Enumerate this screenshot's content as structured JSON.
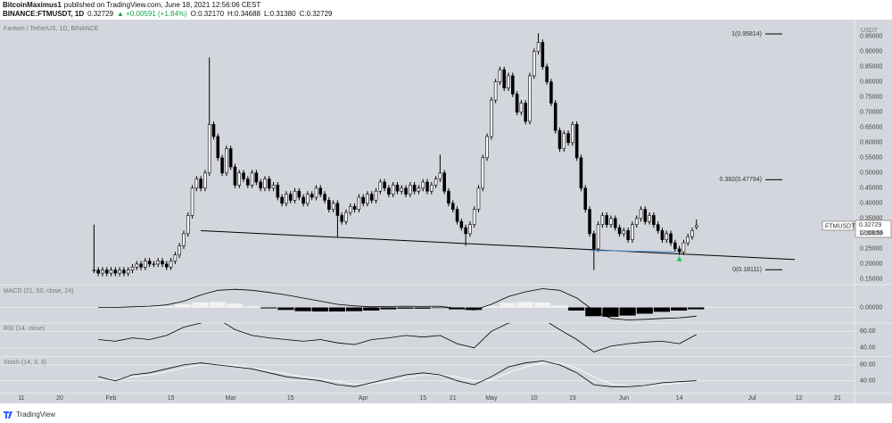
{
  "header": {
    "byline_user": "BitcoinMaximus1",
    "byline": "published on TradingView.com, June 18, 2021 12:56:06 CEST",
    "symbol": "BINANCE:FTMUSDT, 1D",
    "last": "0.32729",
    "change": "▲ +0.00591 (+1.84%)",
    "ohlc": [
      "O:0.32170",
      "H:0.34688",
      "L:0.31380",
      "C:0.32729"
    ]
  },
  "price_tag": {
    "symbol": "FTMUSDT",
    "price": "0.32729",
    "countdown": "13:03:56"
  },
  "footer": {
    "brand": "TradingView"
  },
  "chart_data": [
    {
      "type": "candlestick",
      "title": "Fantom / TetherUS, 1D, BINANCE",
      "y_unit": "USDT",
      "up_color": "#ffffff",
      "down_color": "#000000",
      "x": [
        27,
        28,
        29,
        30,
        31,
        32,
        33,
        34,
        35,
        36,
        37,
        38,
        39,
        40,
        41,
        42,
        43,
        44,
        45,
        46,
        47,
        48,
        49,
        50,
        51,
        52,
        53,
        54,
        55,
        56,
        57,
        58,
        59,
        60,
        61,
        62,
        63,
        64,
        65,
        66,
        67,
        68,
        69,
        70,
        71,
        72,
        73,
        74,
        75,
        76,
        77,
        78,
        79,
        80,
        81,
        82,
        83,
        84,
        85,
        86,
        87,
        88,
        89,
        90,
        91,
        92,
        93,
        94,
        95,
        96,
        97,
        98,
        99,
        100,
        101,
        102,
        103,
        104,
        105,
        106,
        107,
        108,
        109,
        110,
        111,
        112,
        113,
        114,
        115,
        116,
        117,
        118,
        119,
        120,
        121,
        122,
        123,
        124,
        125,
        126,
        127,
        128,
        129,
        130,
        131,
        132,
        133,
        134,
        135,
        136,
        137,
        138,
        139,
        140,
        141,
        142,
        143,
        144,
        145,
        146,
        147,
        148,
        149,
        150,
        151,
        152,
        153,
        154,
        155,
        156,
        157,
        158,
        159,
        160,
        161,
        162,
        163,
        164,
        165,
        166,
        167,
        168
      ],
      "open": [
        0.18,
        0.18,
        0.17,
        0.18,
        0.17,
        0.18,
        0.17,
        0.18,
        0.17,
        0.18,
        0.19,
        0.2,
        0.19,
        0.21,
        0.2,
        0.2,
        0.21,
        0.2,
        0.19,
        0.21,
        0.23,
        0.26,
        0.3,
        0.36,
        0.45,
        0.48,
        0.45,
        0.5,
        0.66,
        0.62,
        0.55,
        0.5,
        0.58,
        0.52,
        0.46,
        0.5,
        0.48,
        0.46,
        0.5,
        0.47,
        0.45,
        0.48,
        0.45,
        0.46,
        0.42,
        0.4,
        0.43,
        0.41,
        0.44,
        0.42,
        0.4,
        0.43,
        0.42,
        0.45,
        0.43,
        0.41,
        0.38,
        0.4,
        0.36,
        0.34,
        0.37,
        0.39,
        0.38,
        0.42,
        0.4,
        0.43,
        0.41,
        0.44,
        0.47,
        0.45,
        0.43,
        0.46,
        0.44,
        0.45,
        0.43,
        0.46,
        0.44,
        0.45,
        0.47,
        0.44,
        0.46,
        0.48,
        0.5,
        0.44,
        0.4,
        0.38,
        0.34,
        0.32,
        0.3,
        0.33,
        0.38,
        0.45,
        0.55,
        0.62,
        0.74,
        0.8,
        0.84,
        0.78,
        0.82,
        0.76,
        0.7,
        0.73,
        0.67,
        0.82,
        0.9,
        0.93,
        0.85,
        0.8,
        0.73,
        0.64,
        0.58,
        0.63,
        0.6,
        0.66,
        0.55,
        0.45,
        0.38,
        0.3,
        0.25,
        0.33,
        0.36,
        0.33,
        0.35,
        0.32,
        0.3,
        0.31,
        0.28,
        0.33,
        0.35,
        0.38,
        0.34,
        0.36,
        0.33,
        0.31,
        0.28,
        0.3,
        0.27,
        0.25,
        0.24,
        0.27,
        0.29,
        0.3217
      ],
      "high": [
        0.33,
        0.19,
        0.19,
        0.19,
        0.19,
        0.19,
        0.19,
        0.19,
        0.19,
        0.2,
        0.21,
        0.21,
        0.22,
        0.22,
        0.21,
        0.22,
        0.22,
        0.21,
        0.22,
        0.24,
        0.27,
        0.31,
        0.37,
        0.46,
        0.49,
        0.49,
        0.51,
        0.88,
        0.67,
        0.63,
        0.56,
        0.59,
        0.59,
        0.53,
        0.51,
        0.51,
        0.49,
        0.51,
        0.51,
        0.48,
        0.49,
        0.49,
        0.47,
        0.47,
        0.43,
        0.44,
        0.44,
        0.45,
        0.45,
        0.43,
        0.44,
        0.44,
        0.46,
        0.46,
        0.44,
        0.42,
        0.41,
        0.41,
        0.37,
        0.38,
        0.4,
        0.4,
        0.43,
        0.43,
        0.44,
        0.44,
        0.45,
        0.48,
        0.48,
        0.46,
        0.47,
        0.47,
        0.46,
        0.46,
        0.47,
        0.47,
        0.46,
        0.48,
        0.48,
        0.47,
        0.49,
        0.56,
        0.51,
        0.45,
        0.41,
        0.39,
        0.35,
        0.33,
        0.34,
        0.39,
        0.46,
        0.56,
        0.63,
        0.75,
        0.81,
        0.85,
        0.85,
        0.83,
        0.83,
        0.77,
        0.74,
        0.74,
        0.83,
        0.91,
        0.96,
        0.94,
        0.86,
        0.81,
        0.74,
        0.65,
        0.64,
        0.64,
        0.67,
        0.67,
        0.56,
        0.46,
        0.39,
        0.31,
        0.34,
        0.37,
        0.37,
        0.36,
        0.36,
        0.33,
        0.32,
        0.32,
        0.34,
        0.36,
        0.39,
        0.39,
        0.37,
        0.37,
        0.34,
        0.32,
        0.31,
        0.31,
        0.28,
        0.26,
        0.28,
        0.3,
        0.32,
        0.34688
      ],
      "low": [
        0.17,
        0.16,
        0.16,
        0.16,
        0.16,
        0.16,
        0.16,
        0.16,
        0.16,
        0.17,
        0.18,
        0.18,
        0.18,
        0.19,
        0.19,
        0.19,
        0.19,
        0.18,
        0.18,
        0.2,
        0.22,
        0.25,
        0.29,
        0.35,
        0.44,
        0.44,
        0.44,
        0.49,
        0.61,
        0.54,
        0.49,
        0.49,
        0.51,
        0.45,
        0.45,
        0.47,
        0.45,
        0.45,
        0.46,
        0.44,
        0.44,
        0.44,
        0.44,
        0.41,
        0.39,
        0.39,
        0.4,
        0.4,
        0.41,
        0.39,
        0.39,
        0.41,
        0.41,
        0.42,
        0.4,
        0.37,
        0.37,
        0.29,
        0.33,
        0.33,
        0.36,
        0.37,
        0.37,
        0.39,
        0.39,
        0.4,
        0.4,
        0.43,
        0.44,
        0.42,
        0.42,
        0.43,
        0.43,
        0.42,
        0.42,
        0.43,
        0.43,
        0.44,
        0.43,
        0.43,
        0.45,
        0.47,
        0.43,
        0.39,
        0.37,
        0.33,
        0.31,
        0.26,
        0.29,
        0.32,
        0.37,
        0.44,
        0.54,
        0.61,
        0.73,
        0.79,
        0.77,
        0.77,
        0.75,
        0.69,
        0.69,
        0.66,
        0.66,
        0.81,
        0.89,
        0.84,
        0.79,
        0.72,
        0.63,
        0.57,
        0.57,
        0.59,
        0.59,
        0.54,
        0.44,
        0.37,
        0.29,
        0.18,
        0.24,
        0.32,
        0.32,
        0.32,
        0.31,
        0.29,
        0.29,
        0.27,
        0.27,
        0.32,
        0.34,
        0.33,
        0.33,
        0.32,
        0.3,
        0.27,
        0.27,
        0.26,
        0.24,
        0.23,
        0.23,
        0.26,
        0.28,
        0.3138
      ],
      "close": [
        0.18,
        0.17,
        0.18,
        0.17,
        0.18,
        0.17,
        0.18,
        0.17,
        0.18,
        0.19,
        0.2,
        0.19,
        0.21,
        0.2,
        0.2,
        0.21,
        0.2,
        0.19,
        0.21,
        0.23,
        0.26,
        0.3,
        0.36,
        0.45,
        0.48,
        0.45,
        0.5,
        0.66,
        0.62,
        0.55,
        0.5,
        0.58,
        0.52,
        0.46,
        0.5,
        0.48,
        0.46,
        0.5,
        0.47,
        0.45,
        0.48,
        0.45,
        0.46,
        0.42,
        0.4,
        0.43,
        0.41,
        0.44,
        0.42,
        0.4,
        0.43,
        0.42,
        0.45,
        0.43,
        0.41,
        0.38,
        0.4,
        0.36,
        0.34,
        0.37,
        0.39,
        0.38,
        0.42,
        0.4,
        0.43,
        0.41,
        0.44,
        0.47,
        0.45,
        0.43,
        0.46,
        0.44,
        0.45,
        0.43,
        0.46,
        0.44,
        0.45,
        0.47,
        0.44,
        0.46,
        0.48,
        0.5,
        0.44,
        0.4,
        0.38,
        0.34,
        0.32,
        0.3,
        0.33,
        0.38,
        0.45,
        0.55,
        0.62,
        0.74,
        0.8,
        0.84,
        0.78,
        0.82,
        0.76,
        0.7,
        0.73,
        0.67,
        0.82,
        0.9,
        0.93,
        0.85,
        0.8,
        0.73,
        0.64,
        0.58,
        0.63,
        0.6,
        0.66,
        0.55,
        0.45,
        0.38,
        0.3,
        0.25,
        0.33,
        0.36,
        0.33,
        0.35,
        0.32,
        0.3,
        0.31,
        0.28,
        0.33,
        0.35,
        0.38,
        0.34,
        0.36,
        0.33,
        0.31,
        0.28,
        0.3,
        0.27,
        0.25,
        0.24,
        0.27,
        0.29,
        0.31,
        0.32729
      ],
      "xlim": [
        5,
        205
      ],
      "xticks": [
        {
          "value": 10,
          "label": "11"
        },
        {
          "value": 19,
          "label": "20"
        },
        {
          "value": 31,
          "label": "Feb"
        },
        {
          "value": 45,
          "label": "15"
        },
        {
          "value": 59,
          "label": "Mar"
        },
        {
          "value": 73,
          "label": "15"
        },
        {
          "value": 90,
          "label": "Apr"
        },
        {
          "value": 104,
          "label": "15"
        },
        {
          "value": 111,
          "label": "21"
        },
        {
          "value": 120,
          "label": "May"
        },
        {
          "value": 130,
          "label": "10"
        },
        {
          "value": 139,
          "label": "19"
        },
        {
          "value": 151,
          "label": "Jun"
        },
        {
          "value": 164,
          "label": "14"
        },
        {
          "value": 181,
          "label": "Jul"
        },
        {
          "value": 192,
          "label": "12"
        },
        {
          "value": 201,
          "label": "21"
        }
      ],
      "ylim": [
        0.135,
        1.005
      ],
      "yticks": [
        {
          "value": 0.15,
          "label": "0.15000"
        },
        {
          "value": 0.2,
          "label": "0.20000"
        },
        {
          "value": 0.25,
          "label": "0.25000"
        },
        {
          "value": 0.3,
          "label": "0.30000"
        },
        {
          "value": 0.35,
          "label": "0.35000"
        },
        {
          "value": 0.4,
          "label": "0.40000"
        },
        {
          "value": 0.45,
          "label": "0.45000"
        },
        {
          "value": 0.5,
          "label": "0.50000"
        },
        {
          "value": 0.55,
          "label": "0.55000"
        },
        {
          "value": 0.6,
          "label": "0.60000"
        },
        {
          "value": 0.65,
          "label": "0.65000"
        },
        {
          "value": 0.7,
          "label": "0.70000"
        },
        {
          "value": 0.75,
          "label": "0.75000"
        },
        {
          "value": 0.8,
          "label": "0.80000"
        },
        {
          "value": 0.85,
          "label": "0.85000"
        },
        {
          "value": 0.9,
          "label": "0.90000"
        },
        {
          "value": 0.95,
          "label": "0.95000"
        }
      ],
      "fib_levels": [
        {
          "value": 0.95814,
          "label": "1(0.95814)"
        },
        {
          "value": 0.47794,
          "label": "0.382(0.47794)"
        },
        {
          "value": 0.18111,
          "label": "0(0.18111)"
        }
      ],
      "trendline": {
        "color": "#000000",
        "x": [
          52,
          191
        ],
        "y": [
          0.31,
          0.215
        ]
      },
      "support": {
        "color": "#4a90d9",
        "x": [
          143,
          163
        ],
        "y": [
          0.245,
          0.24
        ]
      },
      "marker": {
        "color": "#22c55e",
        "x": 164,
        "y": 0.218
      }
    },
    {
      "type": "macd",
      "title": "MACD (21, 50, close, 24)",
      "line_color": "#000000",
      "up_color": "#f2f2f2",
      "down_color": "#000000",
      "x": [
        28,
        32,
        36,
        40,
        44,
        48,
        52,
        56,
        60,
        64,
        68,
        72,
        76,
        80,
        84,
        88,
        92,
        96,
        100,
        104,
        108,
        112,
        116,
        120,
        124,
        128,
        132,
        136,
        140,
        144,
        148,
        152,
        156,
        160,
        164,
        168
      ],
      "values": [
        0,
        0,
        0.002,
        0.004,
        0.008,
        0.02,
        0.04,
        0.055,
        0.058,
        0.055,
        0.048,
        0.04,
        0.03,
        0.02,
        0.01,
        0.005,
        0.002,
        0.003,
        0.004,
        0.003,
        0.004,
        -0.003,
        -0.008,
        0.01,
        0.035,
        0.05,
        0.06,
        0.055,
        0.03,
        -0.01,
        -0.035,
        -0.04,
        -0.038,
        -0.035,
        -0.033,
        -0.028
      ],
      "histogram": [
        0,
        0.001,
        0.002,
        0.002,
        0.004,
        0.01,
        0.016,
        0.018,
        0.012,
        0.004,
        -0.003,
        -0.008,
        -0.012,
        -0.013,
        -0.013,
        -0.012,
        -0.01,
        -0.006,
        -0.004,
        -0.004,
        -0.002,
        -0.006,
        -0.008,
        0.005,
        0.015,
        0.018,
        0.016,
        0.006,
        -0.01,
        -0.028,
        -0.03,
        -0.026,
        -0.02,
        -0.014,
        -0.01,
        -0.006
      ],
      "ylim": [
        -0.05,
        0.07
      ],
      "yticks": [
        {
          "value": 0,
          "label": "0.00000"
        }
      ]
    },
    {
      "type": "rsi",
      "title": "RSI (14, close)",
      "line_color": "#000000",
      "x": [
        28,
        32,
        36,
        40,
        44,
        48,
        52,
        56,
        60,
        64,
        68,
        72,
        76,
        80,
        84,
        88,
        92,
        96,
        100,
        104,
        108,
        112,
        116,
        120,
        124,
        128,
        132,
        136,
        140,
        144,
        148,
        152,
        156,
        160,
        164,
        168
      ],
      "values": [
        50,
        48,
        52,
        50,
        55,
        65,
        70,
        75,
        62,
        55,
        52,
        50,
        48,
        50,
        46,
        44,
        50,
        52,
        55,
        53,
        55,
        45,
        40,
        60,
        70,
        72,
        75,
        62,
        50,
        35,
        42,
        45,
        47,
        48,
        45,
        56
      ],
      "ylim": [
        30,
        70
      ],
      "yticks": [
        {
          "value": 60,
          "label": "60.00"
        },
        {
          "value": 40,
          "label": "40.00"
        }
      ]
    },
    {
      "type": "stoch",
      "title": "Stoch (14, 3, 3)",
      "x": [
        28,
        32,
        36,
        40,
        44,
        48,
        52,
        56,
        60,
        64,
        68,
        72,
        76,
        80,
        84,
        88,
        92,
        96,
        100,
        104,
        108,
        112,
        116,
        120,
        124,
        128,
        132,
        136,
        140,
        144,
        148,
        152,
        156,
        160,
        164,
        168
      ],
      "series": [
        {
          "color": "#ffffff",
          "values": [
            45,
            45,
            50,
            55,
            62,
            72,
            80,
            82,
            78,
            72,
            65,
            58,
            50,
            45,
            38,
            32,
            32,
            38,
            48,
            55,
            56,
            50,
            40,
            42,
            60,
            75,
            85,
            85,
            72,
            50,
            32,
            27,
            26,
            30,
            34,
            38
          ]
        },
        {
          "color": "#000000",
          "values": [
            50,
            40,
            55,
            60,
            70,
            80,
            85,
            80,
            75,
            70,
            60,
            50,
            45,
            40,
            30,
            25,
            35,
            45,
            55,
            60,
            55,
            40,
            30,
            50,
            75,
            85,
            90,
            80,
            60,
            30,
            25,
            25,
            28,
            35,
            38,
            40
          ]
        }
      ],
      "ylim": [
        10,
        100
      ],
      "yticks": [
        {
          "value": 80,
          "label": "80.00"
        },
        {
          "value": 40,
          "label": "40.00"
        }
      ]
    }
  ]
}
